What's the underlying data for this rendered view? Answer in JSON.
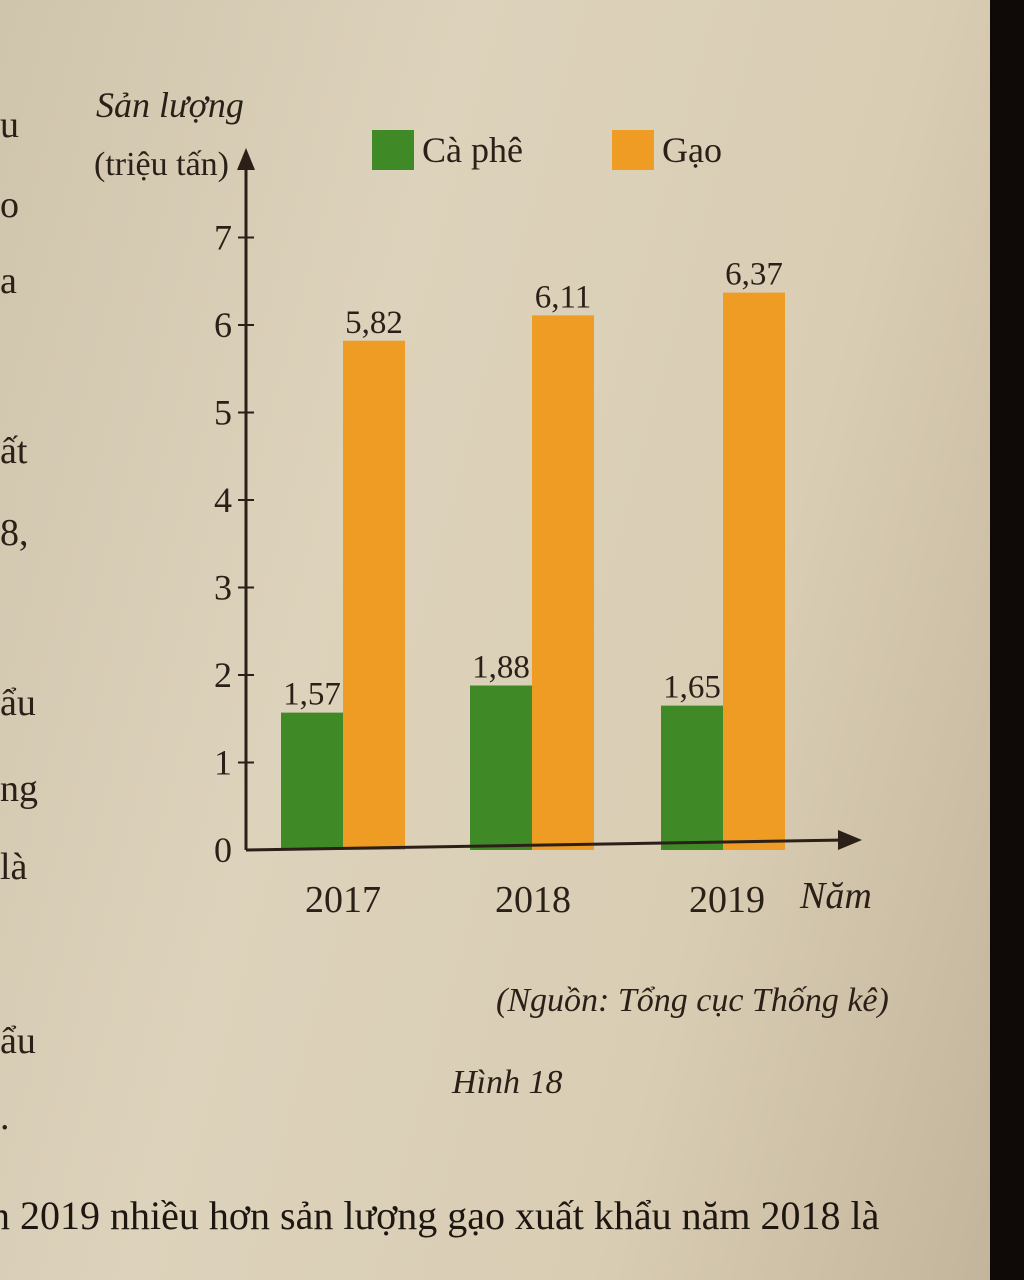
{
  "chart_data": {
    "type": "bar",
    "ylabel_line1": "Sản lượng",
    "ylabel_line2": "(triệu tấn)",
    "xlabel": "Năm",
    "categories": [
      "2017",
      "2018",
      "2019"
    ],
    "series": [
      {
        "name": "Cà phê",
        "values": [
          1.57,
          1.88,
          1.65
        ],
        "labels": [
          "1,57",
          "1,88",
          "1,65"
        ],
        "color": "#3f8a26"
      },
      {
        "name": "Gạo",
        "values": [
          5.82,
          6.11,
          6.37
        ],
        "labels": [
          "5,82",
          "6,11",
          "6,37"
        ],
        "color": "#ee9c23"
      }
    ],
    "ylim": [
      0,
      7
    ],
    "yticks": [
      0,
      1,
      2,
      3,
      4,
      5,
      6,
      7
    ],
    "grid": false,
    "legend_position": "top"
  },
  "source_text": "(Nguồn: Tổng cục Thống kê)",
  "figure_caption": "Hình 18",
  "bottom_sentence": "n 2019 nhiều hơn sản lượng gạo xuất khẩu năm 2018 là",
  "left_margin_fragments": [
    "u",
    "o",
    "a",
    "ất",
    "8,",
    "ẩu",
    "ng",
    "là",
    "ẩu",
    "."
  ]
}
